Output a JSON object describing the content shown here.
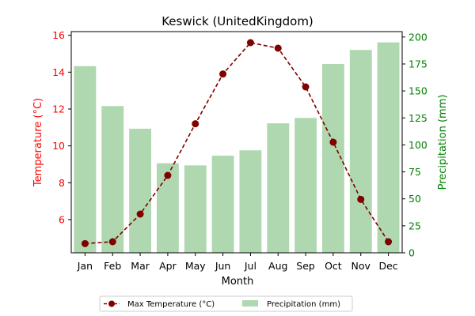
{
  "chart_data": {
    "type": "bar+line",
    "title": "Keswick (UnitedKingdom)",
    "xlabel": "Month",
    "categories": [
      "Jan",
      "Feb",
      "Mar",
      "Apr",
      "May",
      "Jun",
      "Jul",
      "Aug",
      "Sep",
      "Oct",
      "Nov",
      "Dec"
    ],
    "y_left": {
      "label": "Temperature (°C)",
      "color": "#ff0000",
      "ticks": [
        6,
        8,
        10,
        12,
        14,
        16
      ],
      "ylim": [
        4.2,
        16.2
      ]
    },
    "y_right": {
      "label": "Precipitation (mm)",
      "color": "#008000",
      "ticks": [
        0,
        25,
        50,
        75,
        100,
        125,
        150,
        175,
        200
      ],
      "ylim": [
        0,
        205
      ]
    },
    "series": [
      {
        "name": "Max Temperature (°C)",
        "type": "line",
        "axis": "left",
        "color": "#800000",
        "style": "dashed",
        "marker": "circle",
        "values": [
          4.7,
          4.8,
          6.3,
          8.4,
          11.2,
          13.9,
          15.6,
          15.3,
          13.2,
          10.2,
          7.1,
          4.8
        ]
      },
      {
        "name": "Precipitation (mm)",
        "type": "bar",
        "axis": "right",
        "color": "#b0d8b0",
        "values": [
          173,
          136,
          115,
          83,
          81,
          90,
          95,
          120,
          125,
          175,
          188,
          195
        ]
      }
    ],
    "legend": {
      "placement": "bottom-center"
    },
    "grid": false
  }
}
